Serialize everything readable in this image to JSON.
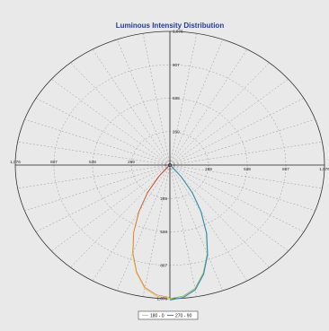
{
  "chart_data": {
    "type": "line",
    "title": "Luminous Intensity Distribution",
    "coordinate_system": "polar",
    "radial_max": 1076,
    "radial_ticks": [
      "269",
      "538",
      "807",
      "1,076"
    ],
    "horizontal_ticks_left": [
      "1,076",
      "807",
      "538",
      "269"
    ],
    "horizontal_ticks_right": [
      "269",
      "538",
      "807",
      "1,076"
    ],
    "vertical_ticks_up": [
      "269",
      "538",
      "807",
      "1,076"
    ],
    "vertical_ticks_down": [
      "269",
      "538",
      "807",
      "1,076"
    ],
    "grid": true,
    "legend_position": "bottom-center",
    "series": [
      {
        "name": "180 - 0",
        "color": "#e6c84a",
        "angles_deg": [
          0,
          5,
          10,
          15,
          20,
          25,
          30,
          35,
          40,
          45
        ],
        "values": [
          1076,
          1060,
          1010,
          900,
          760,
          600,
          430,
          270,
          120,
          20
        ]
      },
      {
        "name": "270 - 90",
        "color": "#2e8bc0",
        "angles_deg": [
          0,
          5,
          10,
          15,
          20,
          25,
          30,
          35,
          40,
          45
        ],
        "values": [
          1076,
          1060,
          1010,
          900,
          760,
          600,
          430,
          270,
          120,
          20
        ]
      }
    ]
  },
  "colors": {
    "left_side_start": "#c0392b",
    "left_side_mid": "#e6c84a",
    "right_side_blue": "#2e8bc0",
    "right_side_green": "#8fb35a"
  }
}
